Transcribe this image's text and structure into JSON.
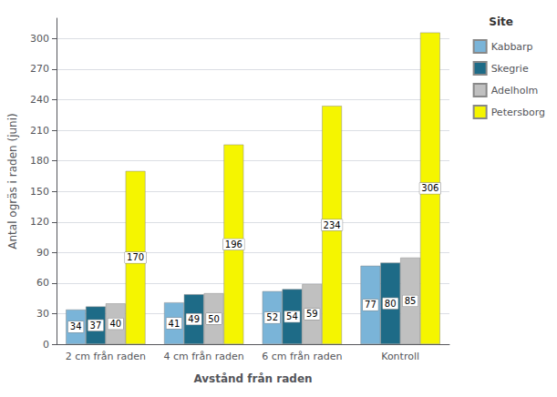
{
  "chart_data": {
    "type": "bar",
    "categories": [
      "2 cm från raden",
      "4 cm från raden",
      "6 cm från raden",
      "Kontroll"
    ],
    "series": [
      {
        "name": "Kabbarp",
        "color": "#7ab4d8",
        "values": [
          34,
          41,
          52,
          77
        ]
      },
      {
        "name": "Skegrie",
        "color": "#1e6b87",
        "values": [
          37,
          49,
          54,
          80
        ]
      },
      {
        "name": "Adelholm",
        "color": "#c0c0c0",
        "values": [
          40,
          50,
          59,
          85
        ]
      },
      {
        "name": "Petersborg",
        "color": "#f5f500",
        "values": [
          170,
          196,
          234,
          306
        ]
      }
    ],
    "xlabel": "Avstånd från raden",
    "ylabel": "Antal ogräs i raden (juni)",
    "ylim": [
      0,
      320
    ],
    "yticks": [
      0,
      30,
      60,
      90,
      120,
      150,
      180,
      210,
      240,
      270,
      300
    ],
    "grid": true,
    "legend": "upper right",
    "legend_title": "Site",
    "data_labels": true
  }
}
